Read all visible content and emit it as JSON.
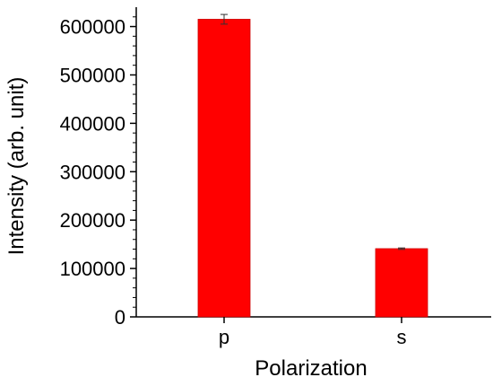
{
  "chart_data": {
    "type": "bar",
    "categories": [
      "p",
      "s"
    ],
    "values": [
      615000,
      141000
    ],
    "errors": [
      10000,
      1500
    ],
    "xlabel": "Polarization",
    "ylabel": "Intensity (arb. unit)",
    "ylim": [
      0,
      640000
    ],
    "yticks": [
      0,
      100000,
      200000,
      300000,
      400000,
      500000,
      600000
    ],
    "ytick_labels": [
      "0",
      "100000",
      "200000",
      "300000",
      "400000",
      "500000",
      "600000"
    ],
    "bar_color": "#ff0000",
    "grid": false,
    "legend": "none"
  }
}
